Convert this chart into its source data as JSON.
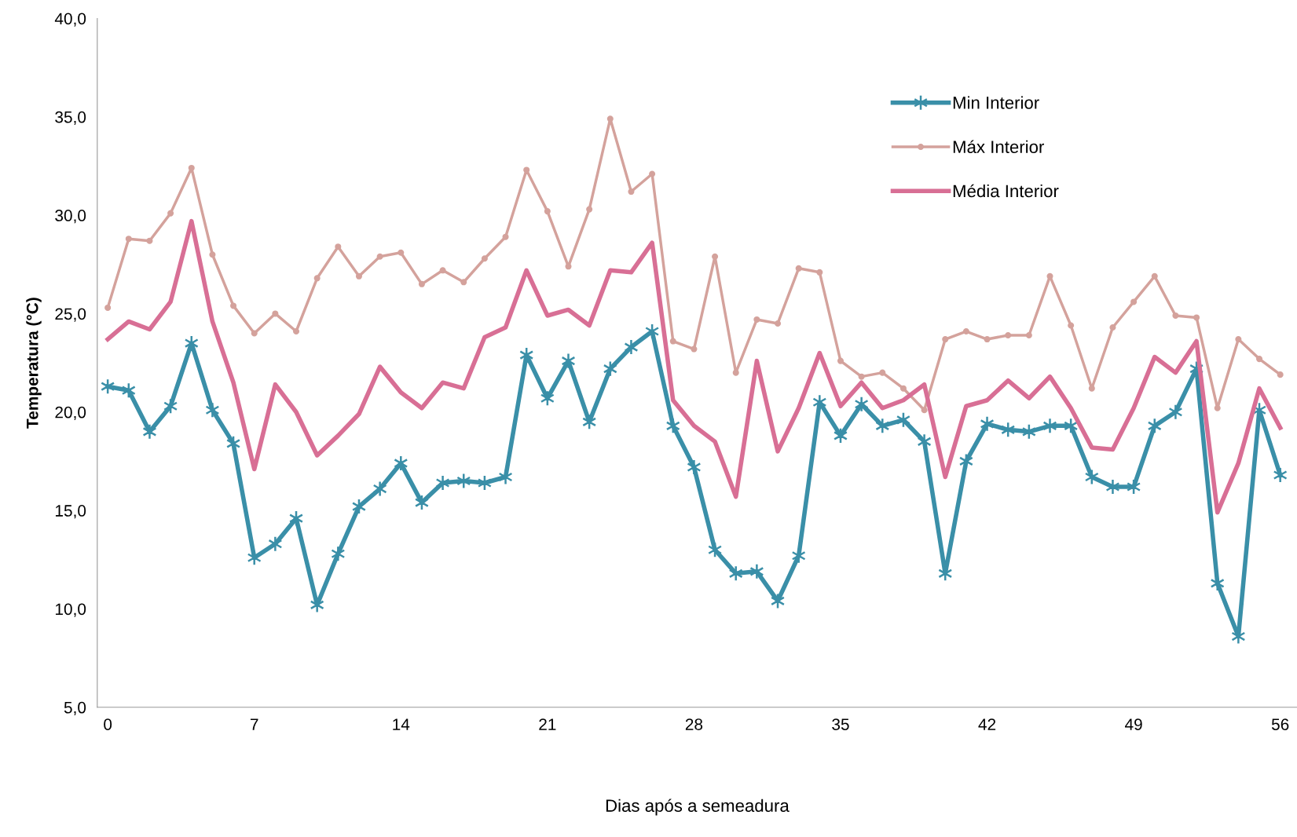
{
  "chart_data": {
    "type": "line",
    "xlabel": "Dias após a semeadura",
    "ylabel": "Temperatura (°C)",
    "x": [
      0,
      1,
      2,
      3,
      4,
      5,
      6,
      7,
      8,
      9,
      10,
      11,
      12,
      13,
      14,
      15,
      16,
      17,
      18,
      19,
      20,
      21,
      22,
      23,
      24,
      25,
      26,
      27,
      28,
      29,
      30,
      31,
      32,
      33,
      34,
      35,
      36,
      37,
      38,
      39,
      40,
      41,
      42,
      43,
      44,
      45,
      46,
      47,
      48,
      49,
      50,
      51,
      52,
      53,
      54,
      55,
      56
    ],
    "series": [
      {
        "name": "Min Interior",
        "color": "#3a8fa8",
        "marker": "cross",
        "values": [
          21.3,
          21.1,
          19.0,
          20.3,
          23.5,
          20.1,
          18.4,
          12.6,
          13.3,
          14.6,
          10.2,
          12.8,
          15.2,
          16.1,
          17.4,
          15.4,
          16.4,
          16.5,
          16.4,
          16.7,
          22.9,
          20.7,
          22.6,
          19.5,
          22.2,
          23.3,
          24.1,
          19.3,
          17.2,
          13.0,
          11.8,
          11.9,
          10.4,
          12.7,
          20.5,
          18.8,
          20.4,
          19.3,
          19.6,
          18.5,
          11.8,
          17.5,
          19.4,
          19.1,
          19.0,
          19.3,
          19.3,
          16.7,
          16.2,
          16.2,
          19.3,
          20.0,
          22.2,
          11.3,
          8.6,
          20.1,
          16.8
        ]
      },
      {
        "name": "Máx Interior",
        "color": "#d4a29c",
        "marker": "circle",
        "values": [
          25.3,
          28.8,
          28.7,
          30.1,
          32.4,
          28.0,
          25.4,
          24.0,
          25.0,
          24.1,
          26.8,
          28.4,
          26.9,
          27.9,
          28.1,
          26.5,
          27.2,
          26.6,
          27.8,
          28.9,
          32.3,
          30.2,
          27.4,
          30.3,
          34.9,
          31.2,
          32.1,
          23.6,
          23.2,
          27.9,
          22.0,
          24.7,
          24.5,
          27.3,
          27.1,
          22.6,
          21.8,
          22.0,
          21.2,
          20.1,
          23.7,
          24.1,
          23.7,
          23.9,
          23.9,
          26.9,
          24.4,
          21.2,
          24.3,
          25.6,
          26.9,
          24.9,
          24.8,
          20.2,
          23.7,
          22.7,
          21.9
        ]
      },
      {
        "name": "Média Interior",
        "color": "#d86f95",
        "marker": "none",
        "values": [
          23.7,
          24.6,
          24.2,
          25.6,
          29.7,
          24.6,
          21.5,
          17.1,
          21.4,
          20.0,
          17.8,
          18.8,
          19.9,
          22.3,
          21.0,
          20.2,
          21.5,
          21.2,
          23.8,
          24.3,
          27.2,
          24.9,
          25.2,
          24.4,
          27.2,
          27.1,
          28.6,
          20.6,
          19.3,
          18.5,
          15.7,
          22.6,
          18.0,
          20.2,
          23.0,
          20.3,
          21.5,
          20.2,
          20.6,
          21.4,
          16.7,
          20.3,
          20.6,
          21.6,
          20.7,
          21.8,
          20.2,
          18.2,
          18.1,
          20.2,
          22.8,
          22.0,
          23.6,
          14.9,
          17.4,
          21.2,
          19.2
        ]
      }
    ],
    "xlim": [
      -0.5,
      56.8
    ],
    "xticks": [
      0,
      7,
      14,
      21,
      28,
      35,
      42,
      49,
      56
    ],
    "ylim": [
      5,
      40
    ],
    "yticks": [
      {
        "value": 5,
        "label": "5,0"
      },
      {
        "value": 10,
        "label": "10,0"
      },
      {
        "value": 15,
        "label": "15,0"
      },
      {
        "value": 20,
        "label": "20,0"
      },
      {
        "value": 25,
        "label": "25,0"
      },
      {
        "value": 30,
        "label": "30,0"
      },
      {
        "value": 35,
        "label": "35,0"
      },
      {
        "value": 40,
        "label": "40,0"
      }
    ],
    "grid": false,
    "legend": "top right"
  }
}
